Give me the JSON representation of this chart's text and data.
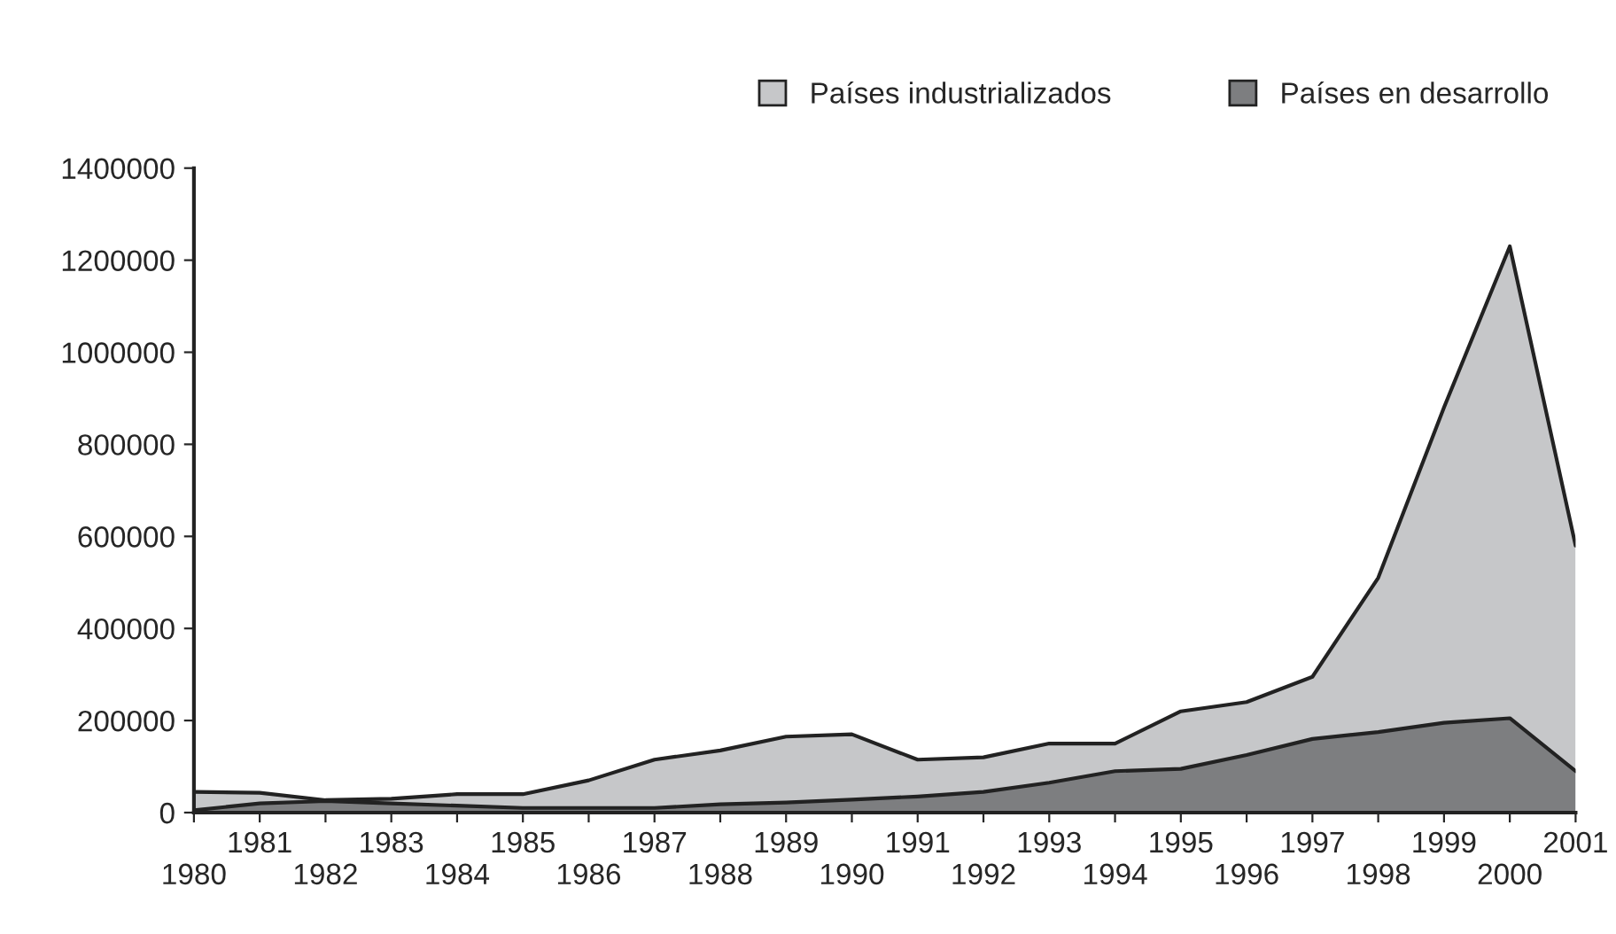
{
  "chart_data": {
    "type": "area",
    "categories": [
      "1980",
      "1981",
      "1982",
      "1983",
      "1984",
      "1985",
      "1986",
      "1987",
      "1988",
      "1989",
      "1990",
      "1991",
      "1992",
      "1993",
      "1994",
      "1995",
      "1996",
      "1997",
      "1998",
      "1999",
      "2000",
      "2001"
    ],
    "series": [
      {
        "name": "Países industrializados",
        "color": "#c6c7c9",
        "values": [
          45000,
          43000,
          27000,
          30000,
          40000,
          40000,
          70000,
          115000,
          135000,
          165000,
          170000,
          115000,
          120000,
          150000,
          150000,
          220000,
          240000,
          295000,
          510000,
          880000,
          1230000,
          580000
        ]
      },
      {
        "name": "Países en desarrollo",
        "color": "#7d7e80",
        "values": [
          5000,
          20000,
          25000,
          20000,
          15000,
          10000,
          10000,
          10000,
          18000,
          22000,
          28000,
          35000,
          45000,
          65000,
          90000,
          95000,
          125000,
          160000,
          175000,
          195000,
          205000,
          90000
        ]
      }
    ],
    "ylim": [
      0,
      1400000
    ],
    "yticks": [
      0,
      200000,
      400000,
      600000,
      800000,
      1000000,
      1200000,
      1400000
    ],
    "grid": false,
    "legend": "top right"
  }
}
